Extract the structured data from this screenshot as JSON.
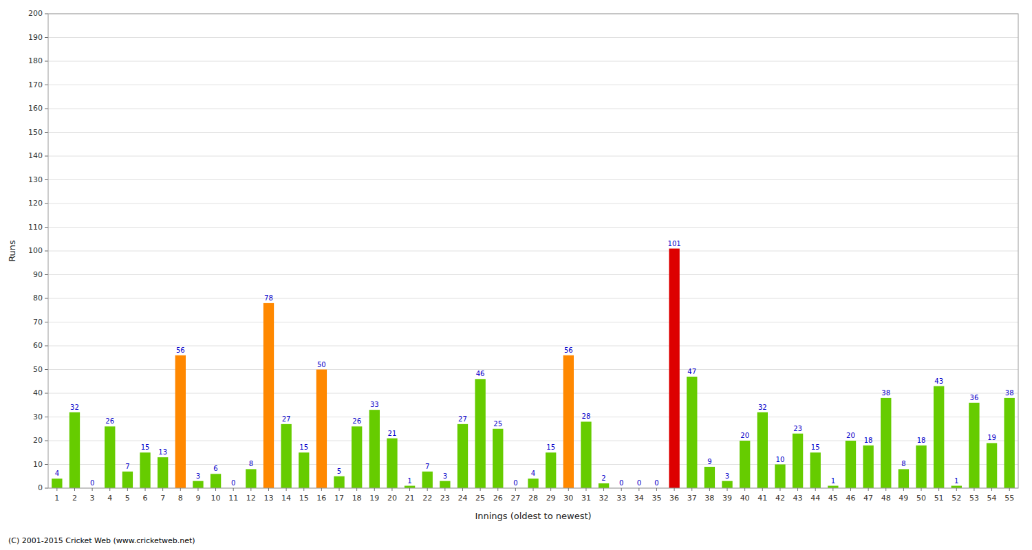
{
  "chart_data": {
    "type": "bar",
    "xlabel": "Innings (oldest to newest)",
    "ylabel": "Runs",
    "annotations": [
      "(C) 2001-2015 Cricket Web (www.cricketweb.net)"
    ],
    "categories": [
      "1",
      "2",
      "3",
      "4",
      "5",
      "6",
      "7",
      "8",
      "9",
      "10",
      "11",
      "12",
      "13",
      "14",
      "15",
      "16",
      "17",
      "18",
      "19",
      "20",
      "21",
      "22",
      "23",
      "24",
      "25",
      "26",
      "27",
      "28",
      "29",
      "30",
      "31",
      "32",
      "33",
      "34",
      "35",
      "36",
      "37",
      "38",
      "39",
      "40",
      "41",
      "42",
      "43",
      "44",
      "45",
      "46",
      "47",
      "48",
      "49",
      "50",
      "51",
      "52",
      "53",
      "54",
      "55"
    ],
    "values": [
      4,
      32,
      0,
      26,
      7,
      15,
      13,
      56,
      3,
      6,
      0,
      8,
      78,
      27,
      15,
      50,
      5,
      26,
      33,
      21,
      1,
      7,
      3,
      27,
      46,
      25,
      0,
      4,
      15,
      56,
      28,
      2,
      0,
      0,
      0,
      101,
      47,
      9,
      3,
      20,
      32,
      10,
      23,
      15,
      1,
      20,
      18,
      38,
      8,
      18,
      43,
      1,
      36,
      19,
      38
    ],
    "colors": [
      "#66cc00",
      "#66cc00",
      "#66cc00",
      "#66cc00",
      "#66cc00",
      "#66cc00",
      "#66cc00",
      "#ff8800",
      "#66cc00",
      "#66cc00",
      "#66cc00",
      "#66cc00",
      "#ff8800",
      "#66cc00",
      "#66cc00",
      "#ff8800",
      "#66cc00",
      "#66cc00",
      "#66cc00",
      "#66cc00",
      "#66cc00",
      "#66cc00",
      "#66cc00",
      "#66cc00",
      "#66cc00",
      "#66cc00",
      "#66cc00",
      "#66cc00",
      "#66cc00",
      "#ff8800",
      "#66cc00",
      "#66cc00",
      "#66cc00",
      "#66cc00",
      "#66cc00",
      "#dd0000",
      "#66cc00",
      "#66cc00",
      "#66cc00",
      "#66cc00",
      "#66cc00",
      "#66cc00",
      "#66cc00",
      "#66cc00",
      "#66cc00",
      "#66cc00",
      "#66cc00",
      "#66cc00",
      "#66cc00",
      "#66cc00",
      "#66cc00",
      "#66cc00",
      "#66cc00",
      "#66cc00",
      "#66cc00"
    ],
    "ylim": [
      0,
      200
    ],
    "yticks": [
      0,
      10,
      20,
      30,
      40,
      50,
      60,
      70,
      80,
      90,
      100,
      110,
      120,
      130,
      140,
      150,
      160,
      170,
      180,
      190,
      200
    ],
    "grid": true,
    "data_labels": true
  }
}
